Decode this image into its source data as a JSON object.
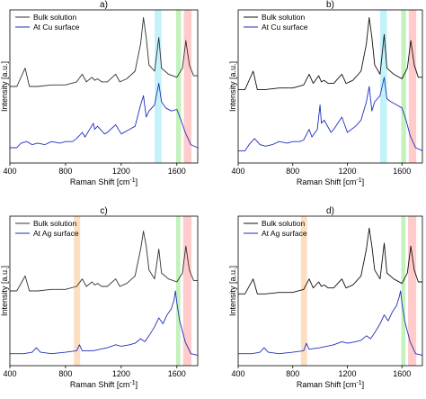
{
  "figure": {
    "shared_xlabel": "Raman Shift [cm",
    "shared_xlabel_sup": "-1",
    "shared_xlabel_end": "]",
    "shared_ylabel": "Intensity [a.u.]"
  },
  "colors": {
    "bulk": "#333333",
    "surface": "#1f2fbf",
    "cyan_band": "#b8f0fa",
    "green_band": "#b8f0b0",
    "red_band": "#ffc2c2",
    "orange_band": "#fcd9b5"
  },
  "chart_data": [
    {
      "type": "line",
      "title": "a)",
      "xlabel": "Raman Shift [cm-1]",
      "ylabel": "Intensity [a.u.]",
      "xlim": [
        400,
        1750
      ],
      "xticks": [
        "400",
        "800",
        "1200",
        "1600"
      ],
      "legend": "top-left",
      "series": [
        {
          "name": "Bulk solution",
          "color": "#333333",
          "x": [
            400,
            450,
            510,
            540,
            600,
            700,
            800,
            880,
            920,
            950,
            990,
            1010,
            1030,
            1060,
            1100,
            1160,
            1190,
            1240,
            1300,
            1340,
            1360,
            1380,
            1400,
            1440,
            1470,
            1490,
            1540,
            1600,
            1640,
            1665,
            1690,
            1720,
            1750
          ],
          "y": [
            0.5,
            0.5,
            0.62,
            0.5,
            0.5,
            0.51,
            0.51,
            0.53,
            0.58,
            0.53,
            0.56,
            0.54,
            0.55,
            0.53,
            0.53,
            0.58,
            0.53,
            0.55,
            0.6,
            0.78,
            0.95,
            0.82,
            0.64,
            0.6,
            0.82,
            0.62,
            0.58,
            0.56,
            0.62,
            0.8,
            0.64,
            0.57,
            0.57
          ]
        },
        {
          "name": "At Cu surface",
          "color": "#1f2fbf",
          "x": [
            400,
            450,
            480,
            520,
            560,
            600,
            650,
            700,
            760,
            800,
            850,
            880,
            920,
            940,
            1000,
            1010,
            1030,
            1080,
            1100,
            1160,
            1200,
            1260,
            1300,
            1340,
            1360,
            1380,
            1400,
            1440,
            1470,
            1490,
            1520,
            1560,
            1600,
            1630,
            1660,
            1700,
            1750
          ],
          "y": [
            0.1,
            0.1,
            0.13,
            0.14,
            0.12,
            0.13,
            0.12,
            0.14,
            0.13,
            0.14,
            0.14,
            0.16,
            0.2,
            0.17,
            0.26,
            0.22,
            0.24,
            0.19,
            0.2,
            0.25,
            0.19,
            0.22,
            0.24,
            0.38,
            0.44,
            0.3,
            0.34,
            0.38,
            0.52,
            0.4,
            0.36,
            0.34,
            0.35,
            0.28,
            0.2,
            0.12,
            0.1
          ]
        }
      ],
      "bands": [
        {
          "xmin": 1440,
          "xmax": 1490,
          "color": "#b8f0fa"
        },
        {
          "xmin": 1595,
          "xmax": 1630,
          "color": "#b8f0b0"
        },
        {
          "xmin": 1650,
          "xmax": 1705,
          "color": "#ffc2c2"
        }
      ]
    },
    {
      "type": "line",
      "title": "b)",
      "xlabel": "Raman Shift [cm-1]",
      "ylabel": "Intensity [a.u.]",
      "xlim": [
        400,
        1750
      ],
      "xticks": [
        "400",
        "800",
        "1200",
        "1600"
      ],
      "legend": "top-left",
      "series": [
        {
          "name": "Bulk solution",
          "color": "#111111",
          "x": [
            400,
            450,
            510,
            540,
            600,
            700,
            800,
            880,
            920,
            950,
            990,
            1010,
            1030,
            1060,
            1100,
            1160,
            1190,
            1240,
            1300,
            1340,
            1360,
            1380,
            1400,
            1440,
            1470,
            1490,
            1540,
            1600,
            1640,
            1665,
            1690,
            1720,
            1750
          ],
          "y": [
            0.48,
            0.48,
            0.6,
            0.48,
            0.48,
            0.49,
            0.49,
            0.51,
            0.58,
            0.52,
            0.57,
            0.53,
            0.54,
            0.52,
            0.52,
            0.58,
            0.52,
            0.54,
            0.6,
            0.78,
            0.95,
            0.82,
            0.64,
            0.58,
            0.84,
            0.62,
            0.58,
            0.55,
            0.62,
            0.8,
            0.64,
            0.56,
            0.56
          ]
        },
        {
          "name": "At Cu surface",
          "color": "#1f2fbf",
          "x": [
            400,
            450,
            480,
            520,
            560,
            600,
            650,
            700,
            760,
            800,
            850,
            880,
            920,
            940,
            980,
            1000,
            1010,
            1030,
            1080,
            1100,
            1160,
            1200,
            1260,
            1300,
            1340,
            1360,
            1380,
            1400,
            1440,
            1470,
            1490,
            1520,
            1560,
            1600,
            1630,
            1660,
            1700,
            1750
          ],
          "y": [
            0.08,
            0.08,
            0.12,
            0.16,
            0.12,
            0.11,
            0.12,
            0.14,
            0.13,
            0.14,
            0.14,
            0.15,
            0.22,
            0.17,
            0.22,
            0.38,
            0.26,
            0.28,
            0.2,
            0.22,
            0.3,
            0.2,
            0.24,
            0.28,
            0.4,
            0.5,
            0.34,
            0.4,
            0.44,
            0.56,
            0.42,
            0.4,
            0.38,
            0.36,
            0.28,
            0.18,
            0.1,
            0.08
          ]
        }
      ],
      "bands": [
        {
          "xmin": 1440,
          "xmax": 1490,
          "color": "#b8f0fa"
        },
        {
          "xmin": 1595,
          "xmax": 1630,
          "color": "#b8f0b0"
        },
        {
          "xmin": 1650,
          "xmax": 1705,
          "color": "#ffc2c2"
        }
      ]
    },
    {
      "type": "line",
      "title": "c)",
      "xlabel": "Raman Shift [cm-1]",
      "ylabel": "Intensity [a.u.]",
      "xlim": [
        400,
        1750
      ],
      "xticks": [
        "400",
        "800",
        "1200",
        "1600"
      ],
      "legend": "top-left",
      "series": [
        {
          "name": "Bulk solution",
          "color": "#333333",
          "x": [
            400,
            450,
            510,
            540,
            600,
            700,
            800,
            880,
            920,
            950,
            990,
            1010,
            1030,
            1060,
            1100,
            1160,
            1190,
            1240,
            1300,
            1340,
            1360,
            1380,
            1400,
            1440,
            1470,
            1490,
            1540,
            1600,
            1640,
            1665,
            1690,
            1720,
            1750
          ],
          "y": [
            0.5,
            0.5,
            0.6,
            0.5,
            0.5,
            0.51,
            0.51,
            0.53,
            0.58,
            0.53,
            0.56,
            0.54,
            0.55,
            0.53,
            0.53,
            0.58,
            0.53,
            0.55,
            0.6,
            0.78,
            0.9,
            0.8,
            0.64,
            0.58,
            0.78,
            0.62,
            0.58,
            0.56,
            0.62,
            0.8,
            0.64,
            0.57,
            0.57
          ]
        },
        {
          "name": "At Ag surface",
          "color": "#1f2fbf",
          "x": [
            400,
            500,
            560,
            590,
            620,
            700,
            800,
            880,
            900,
            920,
            1000,
            1050,
            1100,
            1160,
            1200,
            1260,
            1300,
            1340,
            1370,
            1400,
            1440,
            1470,
            1500,
            1530,
            1560,
            1580,
            1590,
            1600,
            1620,
            1660,
            1700,
            1750
          ],
          "y": [
            0.08,
            0.08,
            0.09,
            0.12,
            0.09,
            0.08,
            0.09,
            0.1,
            0.14,
            0.1,
            0.1,
            0.11,
            0.12,
            0.14,
            0.13,
            0.14,
            0.15,
            0.18,
            0.16,
            0.2,
            0.26,
            0.32,
            0.28,
            0.34,
            0.38,
            0.44,
            0.5,
            0.42,
            0.3,
            0.16,
            0.08,
            0.07
          ]
        }
      ],
      "bands": [
        {
          "xmin": 860,
          "xmax": 905,
          "color": "#fcd9b5"
        },
        {
          "xmin": 1595,
          "xmax": 1625,
          "color": "#b8f0b0"
        },
        {
          "xmin": 1645,
          "xmax": 1705,
          "color": "#ffc2c2"
        }
      ]
    },
    {
      "type": "line",
      "title": "d)",
      "xlabel": "Raman Shift [cm-1]",
      "ylabel": "Intensity [a.u.]",
      "xlim": [
        400,
        1750
      ],
      "xticks": [
        "400",
        "800",
        "1200",
        "1600"
      ],
      "legend": "top-left",
      "series": [
        {
          "name": "Bulk solution",
          "color": "#111111",
          "x": [
            400,
            450,
            510,
            540,
            600,
            700,
            800,
            880,
            920,
            950,
            990,
            1010,
            1030,
            1060,
            1100,
            1160,
            1190,
            1240,
            1300,
            1340,
            1360,
            1380,
            1400,
            1440,
            1470,
            1490,
            1540,
            1600,
            1640,
            1665,
            1690,
            1720,
            1750
          ],
          "y": [
            0.48,
            0.48,
            0.58,
            0.48,
            0.48,
            0.49,
            0.49,
            0.51,
            0.58,
            0.52,
            0.56,
            0.53,
            0.54,
            0.52,
            0.52,
            0.58,
            0.52,
            0.54,
            0.6,
            0.78,
            0.92,
            0.8,
            0.64,
            0.58,
            0.82,
            0.62,
            0.58,
            0.55,
            0.62,
            0.8,
            0.64,
            0.56,
            0.56
          ]
        },
        {
          "name": "At Ag surface",
          "color": "#1f2fbf",
          "x": [
            400,
            500,
            560,
            590,
            620,
            700,
            800,
            880,
            900,
            920,
            1000,
            1050,
            1100,
            1160,
            1200,
            1260,
            1300,
            1340,
            1370,
            1400,
            1440,
            1470,
            1500,
            1530,
            1560,
            1580,
            1590,
            1600,
            1620,
            1660,
            1700,
            1750
          ],
          "y": [
            0.08,
            0.08,
            0.09,
            0.12,
            0.09,
            0.08,
            0.09,
            0.1,
            0.15,
            0.11,
            0.12,
            0.13,
            0.14,
            0.16,
            0.15,
            0.16,
            0.17,
            0.2,
            0.18,
            0.22,
            0.28,
            0.34,
            0.3,
            0.36,
            0.4,
            0.46,
            0.5,
            0.42,
            0.3,
            0.16,
            0.08,
            0.07
          ]
        }
      ],
      "bands": [
        {
          "xmin": 860,
          "xmax": 905,
          "color": "#fcd9b5"
        },
        {
          "xmin": 1595,
          "xmax": 1625,
          "color": "#b8f0b0"
        },
        {
          "xmin": 1645,
          "xmax": 1705,
          "color": "#ffc2c2"
        }
      ]
    }
  ]
}
